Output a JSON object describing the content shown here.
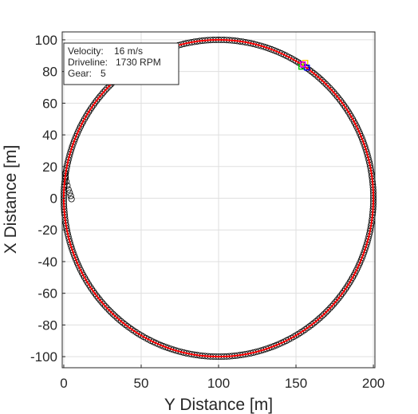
{
  "chart_data": {
    "type": "scatter",
    "title": "",
    "xlabel": "Y Distance [m]",
    "ylabel": "X Distance [m]",
    "xlim": [
      -1,
      201
    ],
    "ylim": [
      -107,
      105
    ],
    "xticks": [
      0,
      50,
      100,
      150,
      200
    ],
    "yticks": [
      100,
      80,
      60,
      40,
      20,
      0,
      -20,
      -40,
      -60,
      -80,
      -100
    ],
    "grid": true,
    "series": [
      {
        "kind": "circle-markers",
        "color": "#000000",
        "description_points": {
          "spiral_start": [
            [
              5,
              -0.5
            ],
            [
              4.5,
              1.5
            ],
            [
              3.8,
              3.5
            ],
            [
              3.0,
              5.5
            ],
            [
              2.3,
              8
            ],
            [
              1.7,
              10.5
            ],
            [
              1.2,
              13
            ],
            [
              0.8,
              15.5
            ]
          ],
          "circle": {
            "center": [
              100,
              0
            ],
            "radius": 100,
            "count": 360
          }
        }
      },
      {
        "kind": "reference-line",
        "color": "#ff0000",
        "circle": {
          "center": [
            100,
            0
          ],
          "radius": 100
        }
      },
      {
        "kind": "vehicle-marker",
        "position": [
          155,
          84
        ],
        "colors": [
          "#00cc00",
          "#ffcc00",
          "#0000ff",
          "#ff00ff"
        ]
      }
    ],
    "annotation": {
      "lines": [
        {
          "label": "Velocity:",
          "value": "16 m/s"
        },
        {
          "label": "Driveline:",
          "value": "1730 RPM"
        },
        {
          "label": "Gear:",
          "value": "5"
        }
      ]
    }
  }
}
